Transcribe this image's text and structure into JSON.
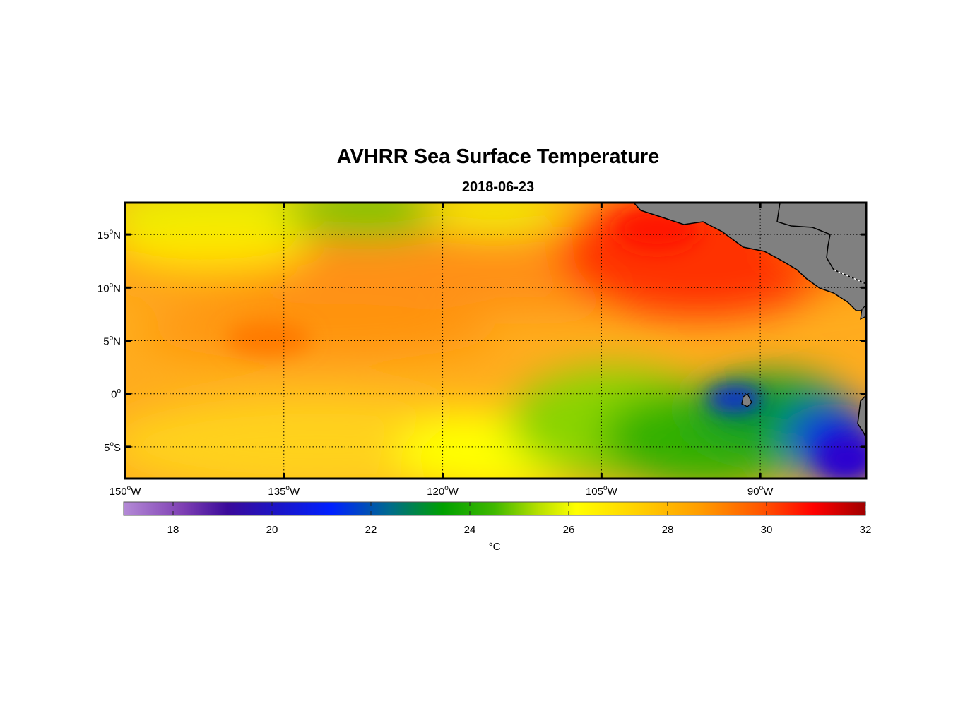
{
  "title": "AVHRR Sea Surface Temperature",
  "date": "2018-06-23",
  "map": {
    "lon_range": [
      -150,
      -80
    ],
    "lat_range": [
      -8,
      18
    ],
    "lon_ticks": [
      {
        "value": -150,
        "deg": "150",
        "hem": "W"
      },
      {
        "value": -135,
        "deg": "135",
        "hem": "W"
      },
      {
        "value": -120,
        "deg": "120",
        "hem": "W"
      },
      {
        "value": -105,
        "deg": "105",
        "hem": "W"
      },
      {
        "value": -90,
        "deg": "90",
        "hem": "W"
      }
    ],
    "lat_ticks": [
      {
        "value": 15,
        "deg": "15",
        "hem": "N"
      },
      {
        "value": 10,
        "deg": "10",
        "hem": "N"
      },
      {
        "value": 5,
        "deg": "5",
        "hem": "N"
      },
      {
        "value": 0,
        "deg": "0",
        "hem": ""
      },
      {
        "value": -5,
        "deg": "5",
        "hem": "S"
      }
    ],
    "grid": "dotted",
    "land_color": "#808080"
  },
  "colorbar": {
    "min": 17,
    "max": 32,
    "ticks": [
      "18",
      "20",
      "22",
      "24",
      "26",
      "28",
      "30",
      "32"
    ],
    "unit": "°C"
  }
}
